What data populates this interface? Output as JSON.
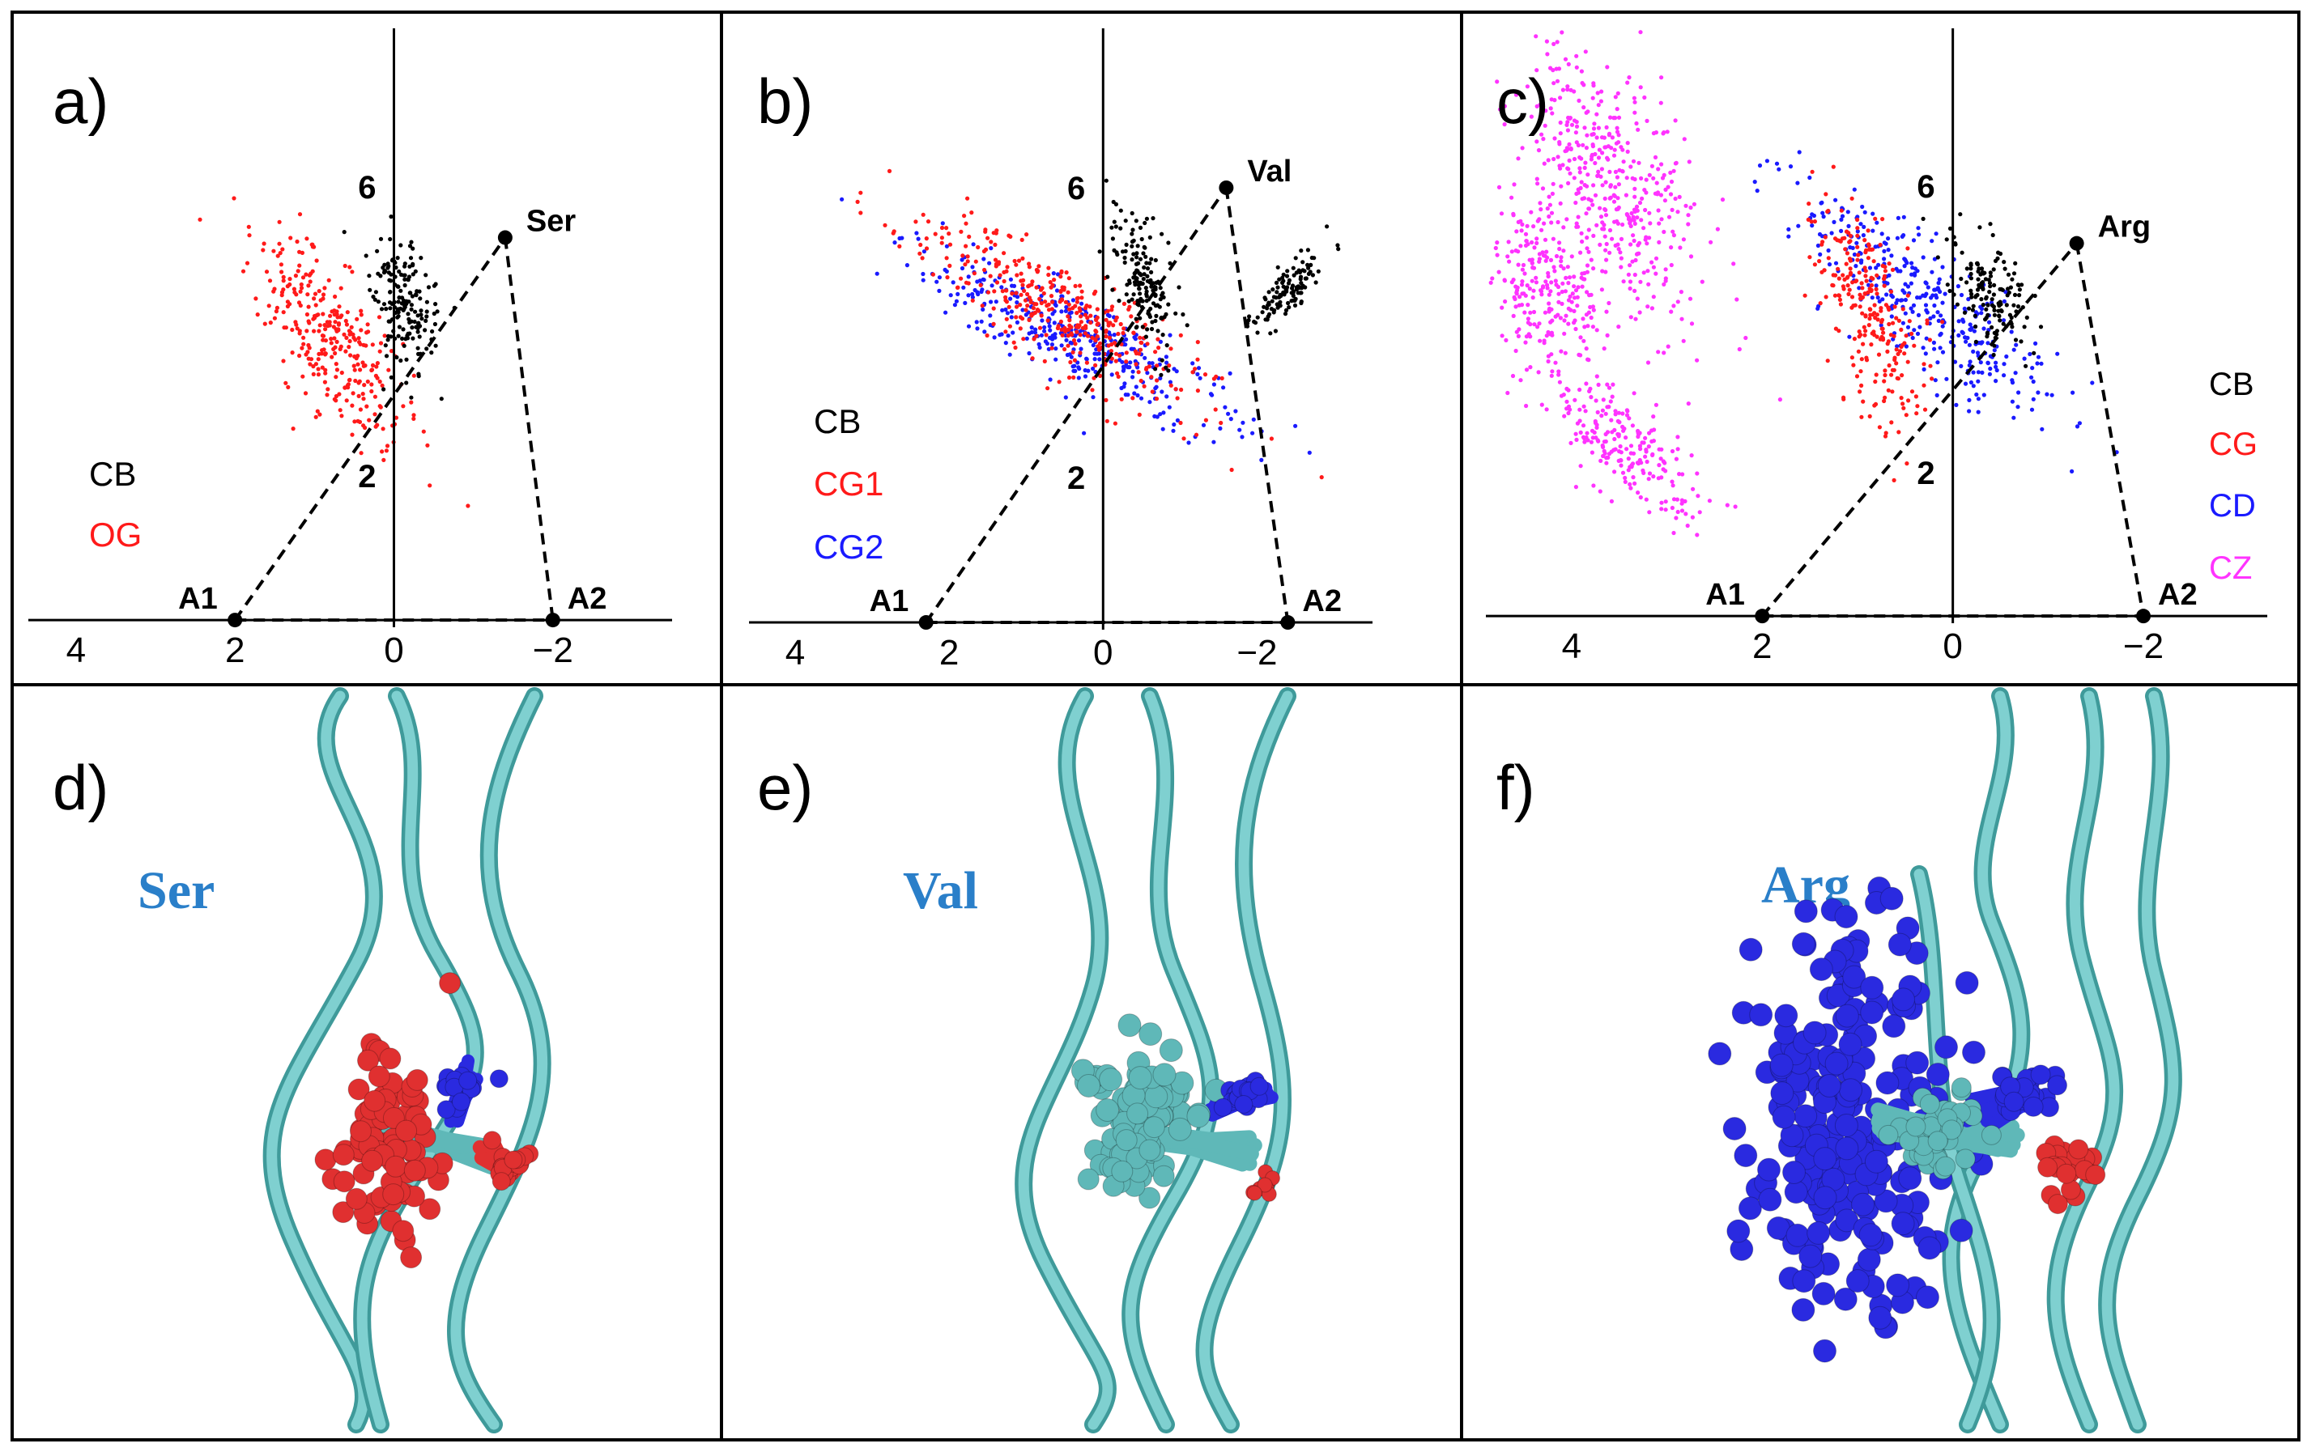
{
  "colors": {
    "CB": "#000000",
    "OG": "#ff1a1a",
    "CG1": "#ff1a1a",
    "CG2": "#1a1aff",
    "CG": "#ff1a1a",
    "CD": "#1a1aff",
    "CZ": "#ff33ff",
    "ribbon": "#6cc6c6",
    "ribbon_dark": "#3f9a9a",
    "atom_red": "#e03030",
    "atom_blue": "#2a2ae0",
    "atom_teal": "#5fb8b8",
    "residue_label": "#2a7fc9"
  },
  "panels": [
    {
      "id": "a",
      "label": "a)",
      "residue": "Ser",
      "chart_data": {
        "type": "scatter",
        "title": "",
        "x_ticks": [
          "4",
          "2",
          "0",
          "−2"
        ],
        "y_ticks": [
          "6",
          "2"
        ],
        "xlim": [
          4.6,
          -3.5
        ],
        "ylim": [
          -0.1,
          8.2
        ],
        "x_axis_reversed": true,
        "anchors": [
          {
            "name": "A1",
            "x": 2.0,
            "y": 0.0
          },
          {
            "name": "A2",
            "x": -2.0,
            "y": 0.0
          },
          {
            "name": "Ser",
            "x": -1.4,
            "y": 5.3
          }
        ],
        "legend": [
          "CB",
          "OG"
        ],
        "series": [
          {
            "name": "CB",
            "color_key": "CB",
            "clusters": [
              {
                "cx": -0.1,
                "cy": 4.4,
                "rx": 0.9,
                "ry": 0.35,
                "tilt": 1.35
              }
            ]
          },
          {
            "name": "OG",
            "color_key": "OG",
            "clusters": [
              {
                "cx": 0.8,
                "cy": 3.9,
                "rx": 1.5,
                "ry": 0.55,
                "tilt": 1.05
              }
            ]
          }
        ]
      }
    },
    {
      "id": "b",
      "label": "b)",
      "residue": "Val",
      "chart_data": {
        "type": "scatter",
        "title": "",
        "x_ticks": [
          "4",
          "2",
          "0",
          "−2"
        ],
        "y_ticks": [
          "6",
          "2"
        ],
        "xlim": [
          4.6,
          -3.5
        ],
        "ylim": [
          -0.1,
          8.2
        ],
        "x_axis_reversed": true,
        "anchors": [
          {
            "name": "A1",
            "x": 2.3,
            "y": 0.0
          },
          {
            "name": "A2",
            "x": -2.4,
            "y": 0.0
          },
          {
            "name": "Val",
            "x": -1.6,
            "y": 6.0
          }
        ],
        "legend": [
          "CB",
          "CG1",
          "CG2"
        ],
        "series": [
          {
            "name": "CB",
            "color_key": "CB",
            "clusters": [
              {
                "cx": -0.5,
                "cy": 4.7,
                "rx": 0.9,
                "ry": 0.3,
                "tilt": 1.3
              },
              {
                "cx": -2.4,
                "cy": 4.6,
                "rx": 0.6,
                "ry": 0.2,
                "tilt": -0.9
              }
            ]
          },
          {
            "name": "CG1",
            "color_key": "CG1",
            "clusters": [
              {
                "cx": 0.6,
                "cy": 4.3,
                "rx": 2.0,
                "ry": 0.55,
                "tilt": 0.6
              }
            ]
          },
          {
            "name": "CG2",
            "color_key": "CG2",
            "clusters": [
              {
                "cx": 0.3,
                "cy": 3.9,
                "rx": 2.1,
                "ry": 0.5,
                "tilt": 0.5
              }
            ]
          }
        ]
      }
    },
    {
      "id": "c",
      "label": "c)",
      "residue": "Arg",
      "chart_data": {
        "type": "scatter",
        "title": "",
        "x_ticks": [
          "4",
          "2",
          "0",
          "−2"
        ],
        "y_ticks": [
          "6",
          "2"
        ],
        "xlim": [
          4.9,
          -3.3
        ],
        "ylim": [
          -0.1,
          8.2
        ],
        "x_axis_reversed": true,
        "anchors": [
          {
            "name": "A1",
            "x": 2.0,
            "y": 0.0
          },
          {
            "name": "A2",
            "x": -2.0,
            "y": 0.0
          },
          {
            "name": "Arg",
            "x": -1.3,
            "y": 5.2
          }
        ],
        "legend": [
          "CB",
          "CG",
          "CD",
          "CZ"
        ],
        "series": [
          {
            "name": "CB",
            "color_key": "CB",
            "clusters": [
              {
                "cx": -0.4,
                "cy": 4.5,
                "rx": 0.7,
                "ry": 0.3,
                "tilt": 1.2
              }
            ]
          },
          {
            "name": "CG",
            "color_key": "CG",
            "clusters": [
              {
                "cx": 0.9,
                "cy": 4.3,
                "rx": 1.6,
                "ry": 0.4,
                "tilt": 1.35
              }
            ]
          },
          {
            "name": "CD",
            "color_key": "CD",
            "clusters": [
              {
                "cx": 0.3,
                "cy": 4.4,
                "rx": 1.8,
                "ry": 0.55,
                "tilt": 0.9
              }
            ]
          },
          {
            "name": "CZ",
            "color_key": "CZ",
            "clusters": [
              {
                "cx": 3.6,
                "cy": 6.0,
                "rx": 1.8,
                "ry": 0.8,
                "tilt": 1.3
              },
              {
                "cx": 4.3,
                "cy": 4.5,
                "rx": 1.0,
                "ry": 0.5,
                "tilt": 1.45
              },
              {
                "cx": 3.4,
                "cy": 2.3,
                "rx": 1.1,
                "ry": 0.45,
                "tilt": 1.0
              }
            ]
          }
        ]
      }
    },
    {
      "id": "d",
      "label": "d)",
      "residue": "Ser",
      "sidechain": "small-red"
    },
    {
      "id": "e",
      "label": "e)",
      "residue": "Val",
      "sidechain": "branched-teal"
    },
    {
      "id": "f",
      "label": "f)",
      "residue": "Arg",
      "sidechain": "long-blue"
    }
  ]
}
